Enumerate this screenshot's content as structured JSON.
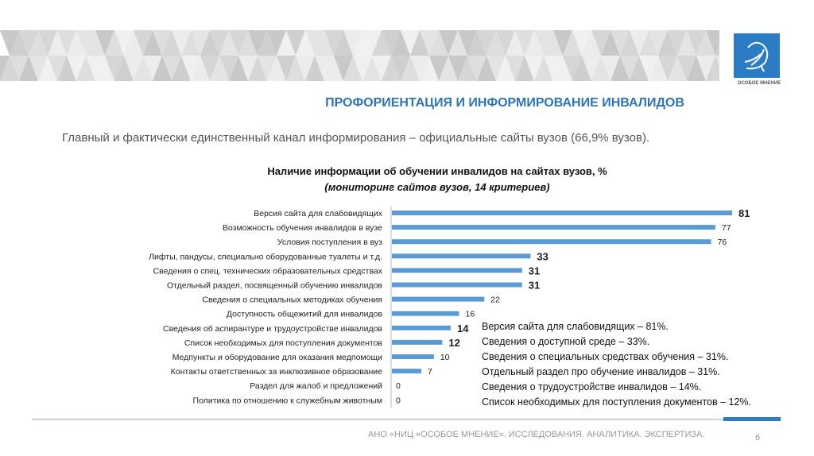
{
  "logo": {
    "text": "ОСОБОЕ МНЕНИЕ",
    "color": "#2b7cc4"
  },
  "slide_title": "ПРОФОРИЕНТАЦИЯ И ИНФОРМИРОВАНИЕ ИНВАЛИДОВ",
  "subtitle": "Главный и фактически единственный канал информирования – официальные сайты вузов (66,9% вузов).",
  "chart_data": {
    "type": "bar",
    "orientation": "horizontal",
    "title": "Наличие информации об обучении инвалидов на сайтах вузов, %",
    "subtitle": "(мониторинг сайтов вузов, 14 критериев)",
    "bar_color": "#5b9bd5",
    "xlim": [
      0,
      81
    ],
    "grid": false,
    "categories": [
      "Версия сайта для слабовидящих",
      "Возможность обучения инвалидов в вузе",
      "Условия поступления в вуз",
      "Лифты, пандусы, специально оборудованные туалеты и т.д.",
      "Сведения о спец. технических образовательных средствах",
      "Отдельный раздел, посвященный обучению инвалидов",
      "Сведения о специальных методиках обучения",
      "Доступность общежитий для инвалидов",
      "Сведения об аспирантуре и трудоустройстве инвалидов",
      "Список необходимых для поступления документов",
      "Медпункты и оборудование для оказания медпомощи",
      "Контакты ответственных за инклюзивное образование",
      "Раздел для жалоб и предложений",
      "Политика по отношению к служебным животным"
    ],
    "values": [
      81,
      77,
      76,
      33,
      31,
      31,
      22,
      16,
      14,
      12,
      10,
      7,
      0,
      0
    ],
    "highlighted": [
      true,
      false,
      false,
      true,
      true,
      true,
      false,
      false,
      true,
      true,
      false,
      false,
      false,
      false
    ]
  },
  "notes": [
    "Версия сайта для слабовидящих – 81%.",
    "Сведения о доступной среде – 33%.",
    "Сведения о специальных  средствах обучения – 31%.",
    "Отдельный раздел про обучение инвалидов – 31%.",
    "Сведения о трудоустройстве инвалидов – 14%.",
    "Список необходимых для поступления документов – 12%."
  ],
  "footer": "АНО «НИЦ «ОСОБОЕ МНЕНИЕ». ИССЛЕДОВАНИЯ. АНАЛИТИКА. ЭКСПЕРТИЗА.",
  "page_number": "6"
}
